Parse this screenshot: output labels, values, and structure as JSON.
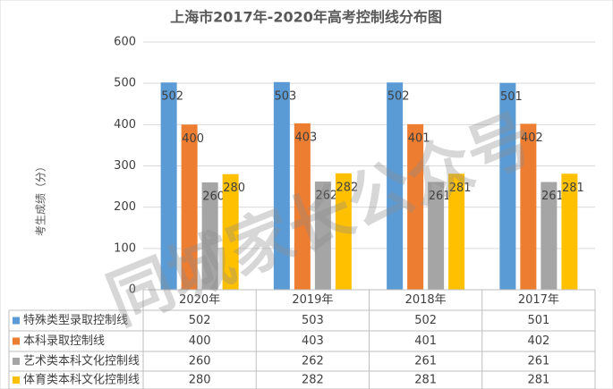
{
  "chart_data": {
    "type": "bar",
    "title": "上海市2017年-2020年高考控制线分布图",
    "y_label": "考生成绩（分）",
    "watermark": "同城家长公众号",
    "categories": [
      "2020年",
      "2019年",
      "2018年",
      "2017年"
    ],
    "series": [
      {
        "name": "特殊类型录取控制线",
        "color": "#5b9bd5",
        "values": [
          502,
          503,
          502,
          501
        ]
      },
      {
        "name": "本科录取控制线",
        "color": "#ed7d31",
        "values": [
          400,
          403,
          401,
          402
        ]
      },
      {
        "name": "艺术类本科文化控制线",
        "color": "#a5a5a5",
        "values": [
          260,
          262,
          261,
          261
        ]
      },
      {
        "name": "体育类本科文化控制线",
        "color": "#ffc000",
        "values": [
          280,
          282,
          281,
          281
        ]
      }
    ],
    "ylim": [
      0,
      600
    ],
    "yticks": [
      0,
      100,
      200,
      300,
      400,
      500,
      600
    ],
    "grid": true,
    "data_table": true
  }
}
